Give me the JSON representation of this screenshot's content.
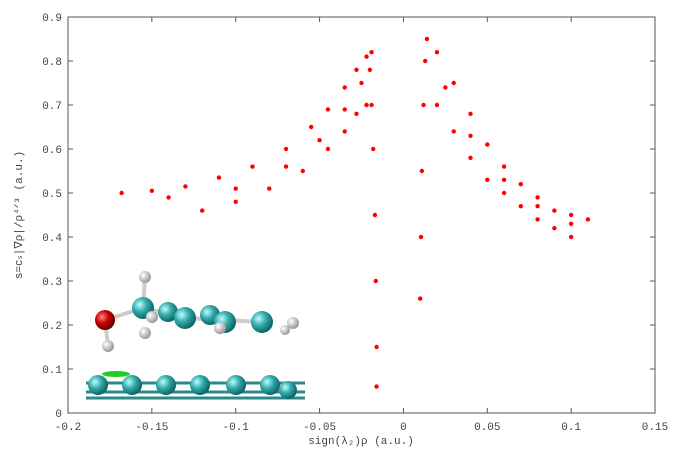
{
  "chart_data": {
    "type": "scatter",
    "x_label": "sign(λ₂)ρ (a.u.)",
    "y_label": "s=cₛ|∇ρ|/ρ⁴ᐟ³ (a.u.)",
    "color": "#ff0000",
    "xlim": [
      -0.2,
      0.15
    ],
    "xticks": [
      -0.2,
      -0.15,
      -0.1,
      -0.05,
      0,
      0.05,
      0.1,
      0.15
    ],
    "ylim": [
      0,
      0.9
    ],
    "yticks": [
      0,
      0.1,
      0.2,
      0.3,
      0.4,
      0.5,
      0.6,
      0.7,
      0.8,
      0.9
    ],
    "x": [
      -0.168,
      -0.15,
      -0.13,
      -0.11,
      -0.09,
      -0.07,
      -0.055,
      -0.045,
      -0.035,
      -0.028,
      -0.022,
      -0.019,
      -0.12,
      -0.1,
      -0.08,
      -0.06,
      -0.045,
      -0.035,
      -0.028,
      -0.022,
      -0.14,
      -0.1,
      -0.07,
      -0.05,
      -0.035,
      -0.025,
      -0.018,
      -0.017,
      -0.0165,
      -0.016,
      -0.016,
      -0.019,
      -0.02,
      0.01,
      0.0105,
      0.011,
      0.012,
      0.013,
      0.014,
      0.02,
      0.03,
      0.04,
      0.05,
      0.06,
      0.07,
      0.08,
      0.09,
      0.1,
      0.11,
      0.02,
      0.03,
      0.04,
      0.05,
      0.06,
      0.07,
      0.08,
      0.09,
      0.1,
      0.025,
      0.04,
      0.06,
      0.08,
      0.1
    ],
    "values": [
      0.5,
      0.505,
      0.515,
      0.535,
      0.56,
      0.6,
      0.65,
      0.69,
      0.74,
      0.78,
      0.81,
      0.82,
      0.46,
      0.48,
      0.51,
      0.55,
      0.6,
      0.64,
      0.68,
      0.7,
      0.49,
      0.51,
      0.56,
      0.62,
      0.69,
      0.75,
      0.6,
      0.45,
      0.3,
      0.15,
      0.06,
      0.7,
      0.78,
      0.26,
      0.4,
      0.55,
      0.7,
      0.8,
      0.85,
      0.82,
      0.75,
      0.68,
      0.61,
      0.56,
      0.52,
      0.49,
      0.46,
      0.45,
      0.44,
      0.7,
      0.64,
      0.58,
      0.53,
      0.5,
      0.47,
      0.44,
      0.42,
      0.4,
      0.74,
      0.63,
      0.53,
      0.47,
      0.43
    ]
  }
}
